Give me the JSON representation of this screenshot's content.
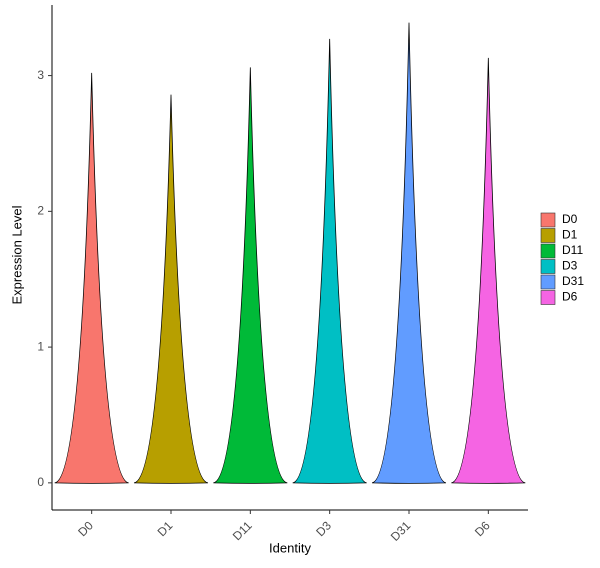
{
  "chart_data": {
    "type": "violin",
    "x_label": "Identity",
    "y_label": "Expression Level",
    "categories": [
      "D0",
      "D1",
      "D11",
      "D3",
      "D31",
      "D6"
    ],
    "values": [
      3.02,
      2.86,
      3.06,
      3.27,
      3.39,
      3.13
    ],
    "colors": [
      "#F8766D",
      "#B79F00",
      "#00BA38",
      "#00BFC4",
      "#619CFF",
      "#F564E3"
    ],
    "ylim": [
      -0.2,
      3.52
    ],
    "yticks": [
      0,
      1,
      2,
      3
    ],
    "legend": "right"
  }
}
